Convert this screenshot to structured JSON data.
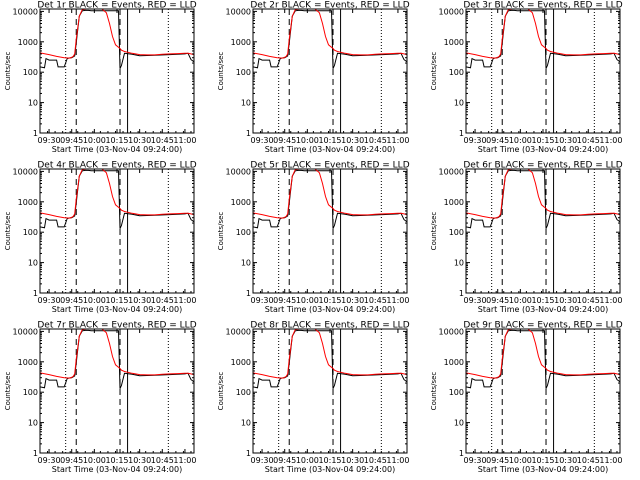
{
  "figure": {
    "xlabel": "Start Time (03-Nov-04 09:24:00)",
    "ylabel": "Counts/sec"
  },
  "chart_data": {
    "type": "line",
    "scale": "log",
    "ylim": [
      1,
      12000
    ],
    "xlim": [
      "09:24",
      "11:06"
    ],
    "yticks": [
      1,
      10,
      100,
      1000,
      10000
    ],
    "ytick_labels": [
      "1",
      "10",
      "100",
      "1000",
      "10000"
    ],
    "xticks": [
      "09:30",
      "09:45",
      "10:00",
      "10:15",
      "10:30",
      "10:45",
      "11:00"
    ],
    "vlines": [
      {
        "style": "dotted",
        "x": "09:41"
      },
      {
        "style": "dashed",
        "x": "09:48"
      },
      {
        "style": "dashed",
        "x": "10:17"
      },
      {
        "style": "solid",
        "x": "10:22"
      },
      {
        "style": "dotted",
        "x": "10:49"
      }
    ],
    "colors": {
      "events": "#000000",
      "lld": "#ff0000"
    },
    "panels": [
      {
        "title": "Det 1r BLACK = Events, RED = LLD"
      },
      {
        "title": "Det 2r BLACK = Events, RED = LLD"
      },
      {
        "title": "Det 3r BLACK = Events, RED = LLD"
      },
      {
        "title": "Det 4r BLACK = Events, RED = LLD"
      },
      {
        "title": "Det 5r BLACK = Events, RED = LLD"
      },
      {
        "title": "Det 6r BLACK = Events, RED = LLD"
      },
      {
        "title": "Det 7r BLACK = Events, RED = LLD"
      },
      {
        "title": "Det 8r BLACK = Events, RED = LLD"
      },
      {
        "title": "Det 9r BLACK = Events, RED = LLD"
      }
    ],
    "series": [
      {
        "color": "#000000",
        "x": [
          "09:24",
          "09:27",
          "09:28",
          "09:30",
          "09:35",
          "09:36",
          "09:40",
          "09:42",
          "09:44",
          "09:45",
          "09:47",
          "09:48",
          "09:50",
          "09:52",
          "09:54",
          "09:56",
          "09:58",
          "10:16",
          "10:17",
          "10:18",
          "10:20",
          "10:25",
          "10:30",
          "10:40",
          "10:50",
          "11:00",
          "11:02",
          "11:04",
          "11:06"
        ],
        "values": [
          150,
          140,
          280,
          250,
          250,
          150,
          150,
          280,
          300,
          300,
          340,
          900,
          7000,
          10500,
          10800,
          10800,
          10500,
          10500,
          130,
          170,
          420,
          390,
          350,
          360,
          380,
          400,
          420,
          260,
          220
        ]
      },
      {
        "color": "#ff0000",
        "x": [
          "09:24",
          "09:30",
          "09:35",
          "09:40",
          "09:44",
          "09:46",
          "09:47",
          "09:48",
          "09:50",
          "09:52",
          "09:55",
          "10:00",
          "10:05",
          "10:08",
          "10:10",
          "10:12",
          "10:14",
          "10:17",
          "10:18",
          "10:20",
          "10:25",
          "10:30",
          "10:35",
          "10:40",
          "10:45",
          "10:50",
          "10:55",
          "11:00",
          "11:02",
          "11:04",
          "11:06"
        ],
        "values": [
          430,
          380,
          330,
          300,
          290,
          330,
          400,
          1200,
          7000,
          11500,
          12000,
          12000,
          12000,
          9000,
          4000,
          1500,
          800,
          600,
          530,
          480,
          420,
          380,
          370,
          370,
          390,
          400,
          410,
          420,
          420,
          400,
          380
        ]
      }
    ]
  }
}
